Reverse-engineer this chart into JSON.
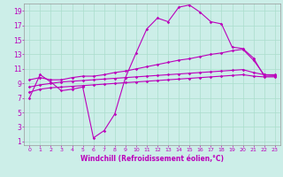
{
  "xlabel": "Windchill (Refroidissement éolien,°C)",
  "bg_color": "#cceee8",
  "grid_color": "#aaddcc",
  "line_color": "#bb00bb",
  "xmin": -0.5,
  "xmax": 23.5,
  "ymin": 0.5,
  "ymax": 20.0,
  "yticks": [
    1,
    3,
    5,
    7,
    9,
    11,
    13,
    15,
    17,
    19
  ],
  "xticks": [
    0,
    1,
    2,
    3,
    4,
    5,
    6,
    7,
    8,
    9,
    10,
    11,
    12,
    13,
    14,
    15,
    16,
    17,
    18,
    19,
    20,
    21,
    22,
    23
  ],
  "line1_x": [
    0,
    1,
    2,
    3,
    4,
    5,
    6,
    7,
    8,
    9,
    10,
    11,
    12,
    13,
    14,
    15,
    16,
    17,
    18,
    19,
    20,
    21,
    22,
    23
  ],
  "line1_y": [
    7.0,
    10.2,
    9.2,
    8.0,
    8.2,
    8.5,
    1.5,
    2.5,
    4.8,
    9.8,
    13.2,
    16.5,
    18.0,
    17.5,
    19.5,
    19.8,
    18.8,
    17.5,
    17.2,
    14.0,
    13.8,
    12.5,
    10.0,
    10.0
  ],
  "line2_x": [
    0,
    1,
    2,
    3,
    4,
    5,
    6,
    7,
    8,
    9,
    10,
    11,
    12,
    13,
    14,
    15,
    16,
    17,
    18,
    19,
    20,
    21,
    22,
    23
  ],
  "line2_y": [
    9.5,
    9.8,
    9.5,
    9.5,
    9.8,
    10.0,
    10.0,
    10.2,
    10.5,
    10.7,
    11.0,
    11.3,
    11.6,
    11.9,
    12.2,
    12.4,
    12.7,
    13.0,
    13.2,
    13.5,
    13.7,
    12.2,
    10.2,
    10.1
  ],
  "line3_x": [
    0,
    1,
    2,
    3,
    4,
    5,
    6,
    7,
    8,
    9,
    10,
    11,
    12,
    13,
    14,
    15,
    16,
    17,
    18,
    19,
    20,
    21,
    22,
    23
  ],
  "line3_y": [
    8.5,
    8.8,
    9.0,
    9.2,
    9.3,
    9.4,
    9.5,
    9.6,
    9.7,
    9.8,
    9.9,
    10.0,
    10.1,
    10.2,
    10.3,
    10.4,
    10.5,
    10.6,
    10.7,
    10.8,
    10.9,
    10.5,
    10.2,
    10.2
  ],
  "line4_x": [
    0,
    1,
    2,
    3,
    4,
    5,
    6,
    7,
    8,
    9,
    10,
    11,
    12,
    13,
    14,
    15,
    16,
    17,
    18,
    19,
    20,
    21,
    22,
    23
  ],
  "line4_y": [
    7.8,
    8.2,
    8.4,
    8.5,
    8.6,
    8.7,
    8.8,
    8.9,
    9.0,
    9.1,
    9.2,
    9.3,
    9.4,
    9.5,
    9.6,
    9.7,
    9.8,
    9.9,
    10.0,
    10.1,
    10.2,
    10.0,
    9.9,
    9.9
  ]
}
